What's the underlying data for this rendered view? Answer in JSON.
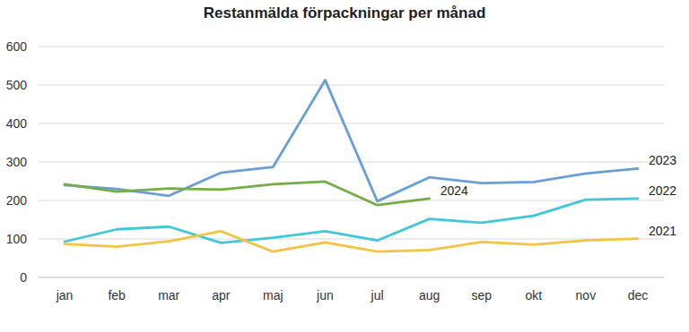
{
  "chart_data": {
    "type": "line",
    "title": "Restanmälda förpackningar per månad",
    "categories": [
      "jan",
      "feb",
      "mar",
      "apr",
      "maj",
      "jun",
      "jul",
      "aug",
      "sep",
      "okt",
      "nov",
      "dec"
    ],
    "series": [
      {
        "name": "2023",
        "color": "#6a9fd6",
        "values": [
          240,
          230,
          212,
          272,
          287,
          513,
          198,
          260,
          245,
          248,
          270,
          283
        ]
      },
      {
        "name": "2024",
        "color": "#72ad45",
        "values": [
          242,
          223,
          231,
          228,
          242,
          249,
          188,
          205,
          null,
          null,
          null,
          null
        ]
      },
      {
        "name": "2022",
        "color": "#40c7d8",
        "values": [
          93,
          125,
          132,
          90,
          103,
          120,
          96,
          152,
          142,
          160,
          202,
          205
        ]
      },
      {
        "name": "2021",
        "color": "#f5c342",
        "values": [
          87,
          80,
          94,
          120,
          67,
          91,
          67,
          71,
          92,
          85,
          96,
          101
        ]
      }
    ],
    "ylim": [
      0,
      600
    ],
    "yticks": [
      0,
      100,
      200,
      300,
      400,
      500,
      600
    ],
    "grid": true
  }
}
